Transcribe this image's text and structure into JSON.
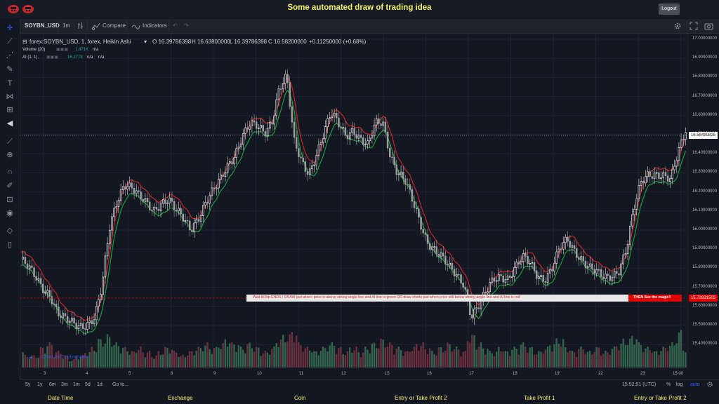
{
  "header": {
    "title": "Some automated draw of trading idea",
    "logout_label": "Logout"
  },
  "toolbar": {
    "symbol": "SOYBN_USD",
    "interval": "1m",
    "compare_label": "Compare",
    "indicators_label": "Indicators"
  },
  "legend": {
    "main": "forex:SOYBN_USD, 1, forex, Heikin Ashi",
    "open": "O 16.39786398",
    "high": "H 16.63800000",
    "low": "L 16.39786398",
    "close": "C 16.58200000",
    "change": "+0.11250000 (+0.68%)",
    "volume_label": "Volume (20)",
    "volume_value": "1.871K",
    "volume_na": "n/a",
    "ai_label": "AI (1, 1)",
    "ai_value": "16.2778",
    "ai_na1": "n/a",
    "ai_na2": "n/a"
  },
  "price_axis": {
    "labels": [
      "17.00000000",
      "16.90000000",
      "16.80000000",
      "16.70000000",
      "16.60000000",
      "16.50000000",
      "16.40000000",
      "16.30000000",
      "16.20000000",
      "16.10000000",
      "16.00000000",
      "15.90000000",
      "15.80000000",
      "15.70000000",
      "15.60000000",
      "15.50000000",
      "15.40000000"
    ],
    "current_price": "16.58490825",
    "signal_price": "15.72831505"
  },
  "time_axis": {
    "labels": [
      "3",
      "4",
      "5",
      "8",
      "9",
      "10",
      "11",
      "12",
      "15",
      "16",
      "17",
      "18",
      "19",
      "22",
      "23",
      "15:00"
    ]
  },
  "signal": {
    "text": "Wait till flip ENDS  !    DRAW just when:  price is above strong angle line and AI line is green        OR        draw shorts just when price still below strong angle line and AI line is red",
    "end_text": "THEN See the magic!!"
  },
  "watermark": "Chart by TradingView",
  "bottom_bar": {
    "ranges": [
      "5y",
      "1y",
      "6m",
      "3m",
      "1m",
      "5d",
      "1d"
    ],
    "goto_label": "Go to...",
    "clock": "15:52:51 (UTC)",
    "pct": "%",
    "log": "log",
    "auto": "auto"
  },
  "footer": {
    "columns": [
      "Date Time",
      "Exchange",
      "Coin",
      "Entry or Take Profit 2",
      "Take Profit 1",
      "Entry or Take Profit 2"
    ]
  },
  "colors": {
    "background": "#131722",
    "title": "#f5f36a",
    "candle_up": "#ffffff",
    "candle_down": "#9e9e9e",
    "line_green": "#1b9e3c",
    "line_red": "#c62828",
    "vol_up": "#3d7f5e",
    "vol_down": "#8a3a4a"
  },
  "icons": [
    "logo-icon",
    "crosshair-icon",
    "trendline-icon",
    "fib-icon",
    "brush-icon",
    "text-icon",
    "pattern-icon",
    "measure-icon",
    "back-arrow-icon",
    "ruler-icon",
    "zoom-icon",
    "magnet-icon",
    "lock-icon",
    "eye-icon",
    "layers-icon",
    "trash-icon",
    "settings-icon",
    "fullscreen-icon",
    "camera-icon",
    "undo-icon",
    "redo-icon",
    "compare-icon",
    "indicators-icon",
    "bar-style-icon"
  ],
  "chart_data": {
    "type": "candlestick",
    "symbol": "forex:SOYBN_USD",
    "ylim": [
      15.35,
      17.05
    ],
    "close": [
      15.9,
      15.85,
      15.8,
      15.75,
      15.72,
      15.62,
      15.58,
      15.56,
      15.55,
      15.57,
      15.6,
      15.75,
      16.05,
      16.2,
      16.3,
      16.28,
      16.22,
      16.18,
      16.15,
      16.2,
      16.22,
      16.15,
      16.1,
      16.05,
      16.12,
      16.2,
      16.25,
      16.3,
      16.38,
      16.45,
      16.55,
      16.6,
      16.58,
      16.55,
      16.62,
      16.8,
      16.85,
      16.5,
      16.4,
      16.35,
      16.45,
      16.55,
      16.65,
      16.6,
      16.55,
      16.58,
      16.52,
      16.48,
      16.6,
      16.62,
      16.45,
      16.35,
      16.3,
      16.2,
      16.1,
      16.0,
      15.95,
      15.9,
      15.85,
      15.82,
      15.78,
      15.6,
      15.65,
      15.72,
      15.8,
      15.82,
      15.8,
      15.85,
      15.9,
      15.88,
      15.82,
      15.8,
      15.85,
      15.95,
      16.0,
      15.95,
      15.9,
      15.85,
      15.82,
      15.8,
      15.82,
      15.85,
      15.95,
      16.15,
      16.3,
      16.35,
      16.35,
      16.33,
      16.3,
      16.45,
      16.58
    ],
    "volume": [
      4,
      3,
      3,
      5,
      6,
      4,
      3,
      2,
      3,
      4,
      5,
      7,
      8,
      6,
      5,
      4,
      5,
      4,
      3,
      4,
      5,
      4,
      3,
      4,
      5,
      6,
      5,
      6,
      7,
      6,
      5,
      6,
      5,
      4,
      5,
      7,
      8,
      9,
      6,
      5,
      4,
      5,
      6,
      5,
      4,
      5,
      4,
      5,
      6,
      7,
      6,
      5,
      4,
      5,
      6,
      5,
      4,
      5,
      6,
      5,
      4,
      8,
      6,
      5,
      4,
      5,
      4,
      5,
      6,
      5,
      4,
      5,
      6,
      7,
      5,
      4,
      5,
      4,
      5,
      4,
      5,
      6,
      7,
      8,
      6,
      5,
      4,
      5,
      6,
      9,
      5
    ]
  }
}
